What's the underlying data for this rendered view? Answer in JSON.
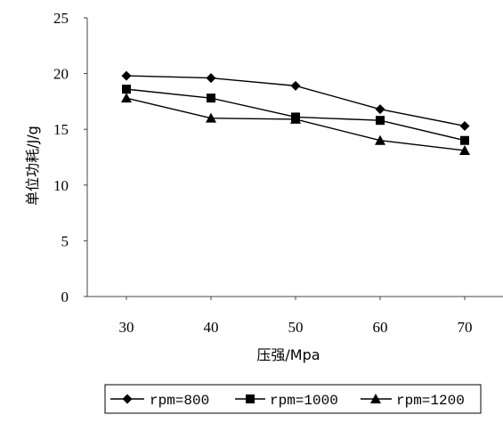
{
  "chart_data": {
    "type": "line",
    "title": "",
    "xlabel": "压强/Mpa",
    "ylabel": "单位功耗/J/g",
    "categories": [
      "30",
      "40",
      "50",
      "60",
      "70"
    ],
    "ylim": [
      0,
      25
    ],
    "yticks": [
      "0",
      "5",
      "10",
      "15",
      "20",
      "25"
    ],
    "grid": false,
    "legend_position": "bottom",
    "series": [
      {
        "name": "rpm=800",
        "marker": "diamond",
        "values": [
          19.8,
          19.6,
          18.9,
          16.8,
          15.3
        ]
      },
      {
        "name": "rpm=1000",
        "marker": "square",
        "values": [
          18.6,
          17.8,
          16.1,
          15.8,
          14.0
        ]
      },
      {
        "name": "rpm=1200",
        "marker": "triangle",
        "values": [
          17.8,
          16.0,
          15.9,
          14.0,
          13.1
        ]
      }
    ],
    "colors": {
      "line": "#000000",
      "axis": "#444444"
    }
  }
}
